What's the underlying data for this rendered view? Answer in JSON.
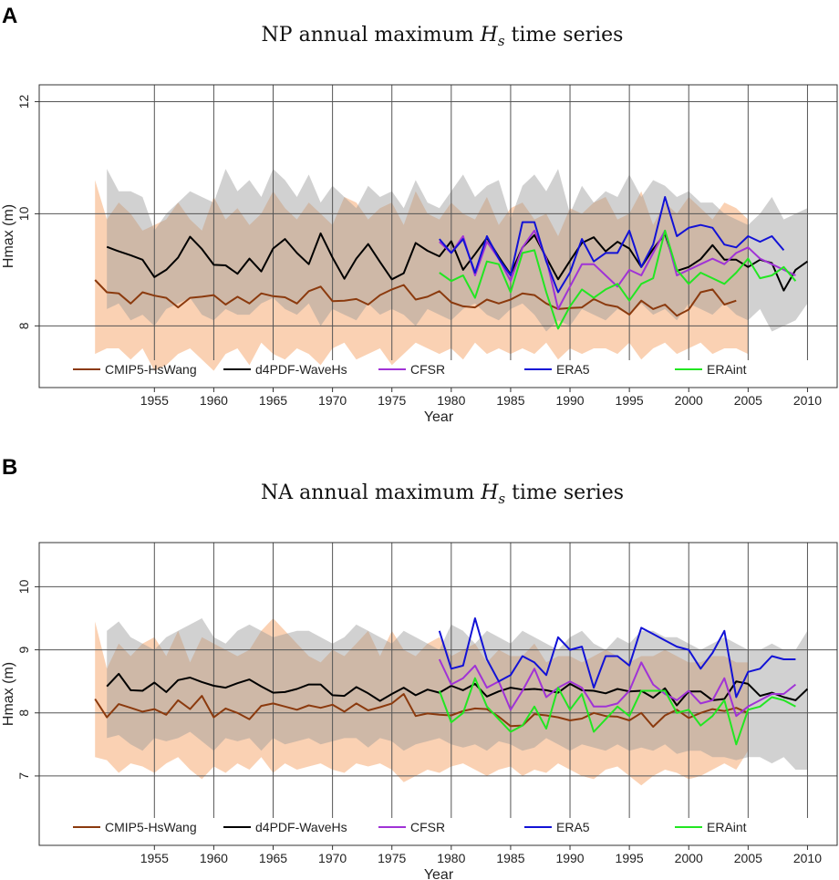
{
  "chart_data": [
    {
      "panel": "A",
      "type": "line",
      "title_prefix": "NP annual maximum ",
      "title_symbol": "H",
      "title_subscript": "s",
      "title_suffix": " time series",
      "xlabel": "Year",
      "ylabel": "Hmax (m)",
      "xlim": [
        1945.3,
        2012.5
      ],
      "ylim": [
        6.9,
        12.3
      ],
      "yticks": [
        8,
        10,
        12
      ],
      "xticks": [
        1955,
        1960,
        1965,
        1970,
        1975,
        1980,
        1985,
        1990,
        1995,
        2000,
        2005,
        2010
      ],
      "bands": [
        {
          "name": "CMIP5-HsWang range",
          "color": "#f7b98a",
          "opacity": 0.65,
          "x_start": 1950,
          "upper": [
            10.6,
            9.9,
            10.2,
            10.0,
            9.7,
            9.8,
            9.9,
            10.2,
            9.9,
            9.7,
            10.3,
            9.9,
            10.1,
            9.8,
            10.0,
            10.4,
            10.1,
            9.9,
            10.2,
            10.0,
            9.8,
            10.3,
            10.2,
            9.9,
            10.1,
            10.2,
            9.8,
            10.4,
            10.0,
            9.9,
            10.2,
            10.0,
            9.9,
            10.3,
            9.8,
            10.1,
            10.2,
            9.9,
            10.0,
            9.6,
            10.1,
            10.0,
            10.2,
            10.3,
            9.9,
            10.0,
            10.4,
            9.8,
            10.2,
            10.0,
            10.3,
            10.1,
            9.9,
            10.2,
            10.1,
            9.9
          ],
          "lower": [
            7.5,
            7.6,
            7.6,
            7.4,
            7.6,
            7.2,
            7.3,
            7.5,
            7.6,
            7.4,
            7.2,
            7.5,
            7.6,
            7.3,
            7.7,
            7.5,
            7.4,
            7.6,
            7.5,
            7.3,
            7.6,
            7.7,
            7.4,
            7.5,
            7.6,
            7.3,
            7.5,
            7.7,
            7.6,
            7.5,
            7.6,
            7.4,
            7.7,
            7.5,
            7.6,
            7.5,
            7.6,
            7.5,
            7.7,
            7.4,
            7.6,
            7.5,
            7.6,
            7.6,
            7.5,
            7.7,
            7.4,
            7.6,
            7.7,
            7.5,
            7.6,
            7.7,
            7.5,
            7.6,
            7.6,
            7.5
          ]
        },
        {
          "name": "d4PDF-WaveHs range",
          "color": "#999999",
          "opacity": 0.45,
          "x_start": 1951,
          "upper": [
            10.8,
            10.4,
            10.4,
            10.3,
            9.7,
            10.0,
            10.2,
            10.4,
            10.3,
            10.2,
            10.8,
            10.4,
            10.6,
            10.3,
            10.8,
            10.6,
            10.3,
            10.7,
            10.2,
            10.5,
            10.3,
            10.1,
            10.5,
            10.3,
            10.4,
            10.1,
            10.6,
            10.2,
            10.1,
            10.4,
            10.7,
            10.3,
            10.5,
            10.6,
            9.9,
            10.5,
            10.7,
            10.4,
            10.8,
            10.0,
            10.5,
            10.2,
            10.4,
            10.3,
            10.7,
            10.3,
            10.6,
            10.5,
            10.3,
            10.4,
            10.2,
            10.2,
            10.0,
            9.9,
            9.8,
            10.0,
            10.3,
            9.9,
            10.0,
            10.1
          ],
          "lower": [
            8.3,
            8.4,
            8.1,
            8.2,
            8.0,
            8.3,
            8.4,
            8.5,
            8.2,
            8.1,
            8.3,
            8.2,
            8.2,
            8.4,
            8.5,
            8.3,
            8.2,
            8.4,
            8.0,
            8.3,
            8.2,
            8.1,
            8.4,
            8.2,
            8.3,
            8.2,
            8.0,
            8.3,
            8.2,
            8.1,
            8.3,
            8.4,
            8.2,
            8.1,
            8.3,
            8.4,
            8.2,
            7.9,
            8.1,
            8.0,
            8.3,
            8.2,
            8.1,
            8.3,
            8.2,
            8.4,
            8.2,
            8.3,
            8.1,
            8.4,
            8.3,
            8.2,
            8.4,
            8.2,
            8.1,
            8.3,
            7.9,
            8.0,
            8.1,
            8.4
          ]
        }
      ],
      "series": [
        {
          "name": "CMIP5-HsWang",
          "color": "#8b3a0e",
          "x_start": 1950,
          "values": [
            8.82,
            8.6,
            8.58,
            8.4,
            8.6,
            8.54,
            8.5,
            8.33,
            8.5,
            8.52,
            8.55,
            8.38,
            8.52,
            8.4,
            8.58,
            8.53,
            8.51,
            8.4,
            8.62,
            8.7,
            8.44,
            8.45,
            8.48,
            8.38,
            8.55,
            8.65,
            8.73,
            8.47,
            8.52,
            8.62,
            8.42,
            8.35,
            8.33,
            8.47,
            8.4,
            8.47,
            8.58,
            8.55,
            8.4,
            8.3,
            8.32,
            8.33,
            8.48,
            8.38,
            8.34,
            8.2,
            8.45,
            8.3,
            8.38,
            8.18,
            8.29,
            8.6,
            8.65,
            8.38,
            8.45
          ]
        },
        {
          "name": "d4PDF-WaveHs",
          "color": "#000000",
          "x_start": 1951,
          "values": [
            9.41,
            9.33,
            9.26,
            9.18,
            8.87,
            9.0,
            9.22,
            9.59,
            9.37,
            9.09,
            9.08,
            8.93,
            9.2,
            8.97,
            9.38,
            9.55,
            9.3,
            9.1,
            9.65,
            9.22,
            8.84,
            9.2,
            9.46,
            9.14,
            8.83,
            8.94,
            9.48,
            9.34,
            9.24,
            9.51,
            9.0,
            9.28,
            9.57,
            9.23,
            8.92,
            9.4,
            9.62,
            9.22,
            8.83,
            9.16,
            9.48,
            9.58,
            9.33,
            9.5,
            9.38,
            9.05,
            9.37,
            9.64,
            8.98,
            9.05,
            9.19,
            9.44,
            9.18,
            9.18,
            9.05,
            9.18,
            9.12,
            8.63,
            9.0,
            9.15
          ]
        },
        {
          "name": "CFSR",
          "color": "#a033d6",
          "x_start": 1979,
          "values": [
            9.5,
            9.3,
            9.6,
            8.9,
            9.5,
            9.2,
            8.8,
            9.4,
            9.7,
            9.2,
            8.3,
            8.7,
            9.1,
            9.1,
            8.9,
            8.7,
            9.0,
            8.9,
            9.3,
            9.7,
            8.9,
            9.0,
            9.1,
            9.2,
            9.1,
            9.3,
            9.4,
            9.2,
            9.1,
            9.0,
            8.9
          ]
        },
        {
          "name": "ERA5",
          "color": "#1212d6",
          "x_start": 1979,
          "values": [
            9.55,
            9.3,
            9.55,
            8.95,
            9.6,
            9.2,
            8.9,
            9.85,
            9.85,
            9.15,
            8.6,
            8.95,
            9.55,
            9.15,
            9.3,
            9.3,
            9.7,
            9.05,
            9.45,
            10.3,
            9.6,
            9.75,
            9.8,
            9.75,
            9.45,
            9.4,
            9.6,
            9.5,
            9.6,
            9.35
          ]
        },
        {
          "name": "ERAint",
          "color": "#22e622",
          "x_start": 1979,
          "values": [
            8.95,
            8.8,
            8.9,
            8.5,
            9.15,
            9.1,
            8.6,
            9.3,
            9.35,
            8.6,
            7.95,
            8.35,
            8.65,
            8.5,
            8.65,
            8.75,
            8.45,
            8.75,
            8.85,
            9.7,
            9.0,
            8.75,
            8.95,
            8.85,
            8.75,
            8.95,
            9.2,
            8.85,
            8.9,
            9.05,
            8.8
          ]
        }
      ]
    },
    {
      "panel": "B",
      "type": "line",
      "title_prefix": "NA annual maximum ",
      "title_symbol": "H",
      "title_subscript": "s",
      "title_suffix": " time series",
      "xlabel": "Year",
      "ylabel": "Hmax (m)",
      "xlim": [
        1945.3,
        2012.5
      ],
      "ylim": [
        5.9,
        10.7
      ],
      "yticks": [
        7,
        8,
        9,
        10
      ],
      "xticks": [
        1955,
        1960,
        1965,
        1970,
        1975,
        1980,
        1985,
        1990,
        1995,
        2000,
        2005,
        2010
      ],
      "bands": [
        {
          "name": "CMIP5-HsWang range",
          "color": "#f7b98a",
          "opacity": 0.65,
          "x_start": 1950,
          "upper": [
            9.45,
            8.7,
            9.1,
            8.9,
            9.1,
            9.2,
            8.9,
            9.3,
            8.8,
            9.2,
            9.1,
            9.0,
            8.9,
            9.0,
            9.3,
            9.5,
            9.3,
            9.1,
            8.9,
            8.8,
            9.0,
            8.9,
            9.1,
            9.3,
            8.9,
            9.3,
            9.0,
            8.9,
            9.1,
            9.2,
            8.9,
            9.0,
            9.1,
            8.8,
            9.0,
            8.9,
            8.9,
            9.1,
            8.8,
            8.9,
            8.9,
            8.8,
            8.9,
            9.0,
            8.9,
            8.8,
            8.9,
            8.9,
            9.0,
            8.9,
            8.8,
            8.8,
            8.9,
            8.9,
            8.8,
            8.8
          ],
          "lower": [
            7.3,
            7.25,
            7.05,
            7.2,
            7.15,
            7.05,
            7.2,
            7.3,
            7.1,
            6.95,
            7.15,
            7.05,
            7.2,
            7.1,
            7.3,
            7.05,
            7.2,
            7.1,
            7.15,
            7.2,
            7.1,
            7.05,
            7.2,
            7.15,
            7.2,
            7.1,
            6.9,
            7.0,
            7.1,
            7.05,
            7.15,
            7.2,
            7.1,
            7.0,
            7.1,
            7.15,
            7.0,
            7.1,
            7.05,
            7.2,
            7.1,
            7.0,
            6.95,
            7.1,
            7.15,
            7.0,
            6.85,
            7.0,
            7.1,
            7.05,
            6.95,
            7.0,
            7.1,
            7.2,
            7.1,
            7.4
          ]
        },
        {
          "name": "d4PDF-WaveHs range",
          "color": "#999999",
          "opacity": 0.45,
          "x_start": 1951,
          "upper": [
            9.3,
            9.45,
            9.2,
            9.1,
            9.0,
            9.2,
            9.3,
            9.4,
            9.5,
            9.2,
            9.1,
            9.3,
            9.4,
            9.3,
            9.2,
            9.25,
            9.3,
            9.3,
            9.2,
            9.1,
            9.2,
            9.4,
            9.3,
            9.2,
            9.1,
            9.3,
            9.2,
            9.1,
            9.0,
            9.4,
            9.3,
            9.1,
            9.3,
            9.2,
            9.1,
            9.3,
            9.2,
            9.1,
            9.0,
            9.2,
            9.3,
            9.1,
            9.0,
            9.2,
            9.1,
            9.3,
            9.3,
            9.2,
            9.2,
            9.1,
            9.0,
            9.1,
            9.2,
            9.1,
            9.0,
            9.0,
            9.1,
            9.0,
            9.0,
            9.3
          ],
          "lower": [
            7.6,
            7.65,
            7.5,
            7.4,
            7.6,
            7.55,
            7.6,
            7.7,
            7.55,
            7.4,
            7.6,
            7.55,
            7.6,
            7.4,
            7.6,
            7.5,
            7.55,
            7.6,
            7.5,
            7.55,
            7.6,
            7.6,
            7.45,
            7.6,
            7.55,
            7.4,
            7.5,
            7.55,
            7.6,
            7.5,
            7.45,
            7.5,
            7.4,
            7.55,
            7.5,
            7.4,
            7.45,
            7.6,
            7.5,
            7.4,
            7.5,
            7.45,
            7.4,
            7.5,
            7.4,
            7.45,
            7.4,
            7.5,
            7.35,
            7.4,
            7.4,
            7.3,
            7.3,
            7.25,
            7.3,
            7.3,
            7.2,
            7.3,
            7.1,
            7.1
          ]
        }
      ],
      "series": [
        {
          "name": "CMIP5-HsWang",
          "color": "#8b3a0e",
          "x_start": 1950,
          "values": [
            8.22,
            7.93,
            8.14,
            8.08,
            8.02,
            8.06,
            7.97,
            8.2,
            8.06,
            8.27,
            7.93,
            8.07,
            8.0,
            7.9,
            8.11,
            8.15,
            8.1,
            8.05,
            8.12,
            8.08,
            8.13,
            8.02,
            8.15,
            8.04,
            8.09,
            8.15,
            8.3,
            7.95,
            7.99,
            7.97,
            7.96,
            8.03,
            8.07,
            8.06,
            7.94,
            7.79,
            7.8,
            7.98,
            7.96,
            7.93,
            7.88,
            7.91,
            8.0,
            7.95,
            7.94,
            7.88,
            8.0,
            7.78,
            7.96,
            8.05,
            7.92,
            8.0,
            8.06,
            8.03,
            8.08,
            8.0
          ]
        },
        {
          "name": "d4PDF-WaveHs",
          "color": "#000000",
          "x_start": 1951,
          "values": [
            8.42,
            8.62,
            8.36,
            8.35,
            8.48,
            8.33,
            8.52,
            8.56,
            8.49,
            8.43,
            8.4,
            8.47,
            8.53,
            8.42,
            8.32,
            8.33,
            8.38,
            8.45,
            8.45,
            8.28,
            8.27,
            8.41,
            8.31,
            8.19,
            8.3,
            8.4,
            8.28,
            8.37,
            8.32,
            8.43,
            8.36,
            8.46,
            8.26,
            8.34,
            8.4,
            8.37,
            8.38,
            8.36,
            8.32,
            8.46,
            8.36,
            8.35,
            8.31,
            8.38,
            8.34,
            8.35,
            8.24,
            8.39,
            8.12,
            8.34,
            8.34,
            8.2,
            8.22,
            8.5,
            8.46,
            8.27,
            8.32,
            8.25,
            8.2,
            8.38
          ]
        },
        {
          "name": "CFSR",
          "color": "#a033d6",
          "x_start": 1979,
          "values": [
            8.85,
            8.45,
            8.55,
            8.75,
            8.4,
            8.5,
            8.05,
            8.35,
            8.7,
            8.25,
            8.4,
            8.5,
            8.4,
            8.1,
            8.1,
            8.15,
            8.35,
            8.8,
            8.45,
            8.3,
            8.2,
            8.35,
            8.15,
            8.2,
            8.55,
            7.95,
            8.1,
            8.2,
            8.3,
            8.3,
            8.45
          ]
        },
        {
          "name": "ERA5",
          "color": "#1212d6",
          "x_start": 1979,
          "values": [
            9.3,
            8.7,
            8.75,
            9.5,
            8.85,
            8.5,
            8.6,
            8.9,
            8.8,
            8.6,
            9.2,
            9.0,
            9.05,
            8.4,
            8.9,
            8.9,
            8.75,
            9.35,
            9.25,
            9.15,
            9.05,
            9.0,
            8.7,
            8.95,
            9.3,
            8.25,
            8.65,
            8.7,
            8.9,
            8.85,
            8.85
          ]
        },
        {
          "name": "ERAint",
          "color": "#22e622",
          "x_start": 1979,
          "values": [
            8.35,
            7.85,
            8.0,
            8.55,
            8.1,
            7.9,
            7.7,
            7.8,
            8.1,
            7.75,
            8.4,
            8.05,
            8.3,
            7.7,
            7.9,
            8.1,
            7.95,
            8.35,
            8.35,
            8.35,
            8.0,
            8.05,
            7.8,
            7.95,
            8.2,
            7.5,
            8.05,
            8.1,
            8.25,
            8.2,
            8.1
          ]
        }
      ]
    }
  ],
  "legend_labels": [
    "CMIP5-HsWang",
    "d4PDF-WaveHs",
    "CFSR",
    "ERA5",
    "ERAint"
  ]
}
